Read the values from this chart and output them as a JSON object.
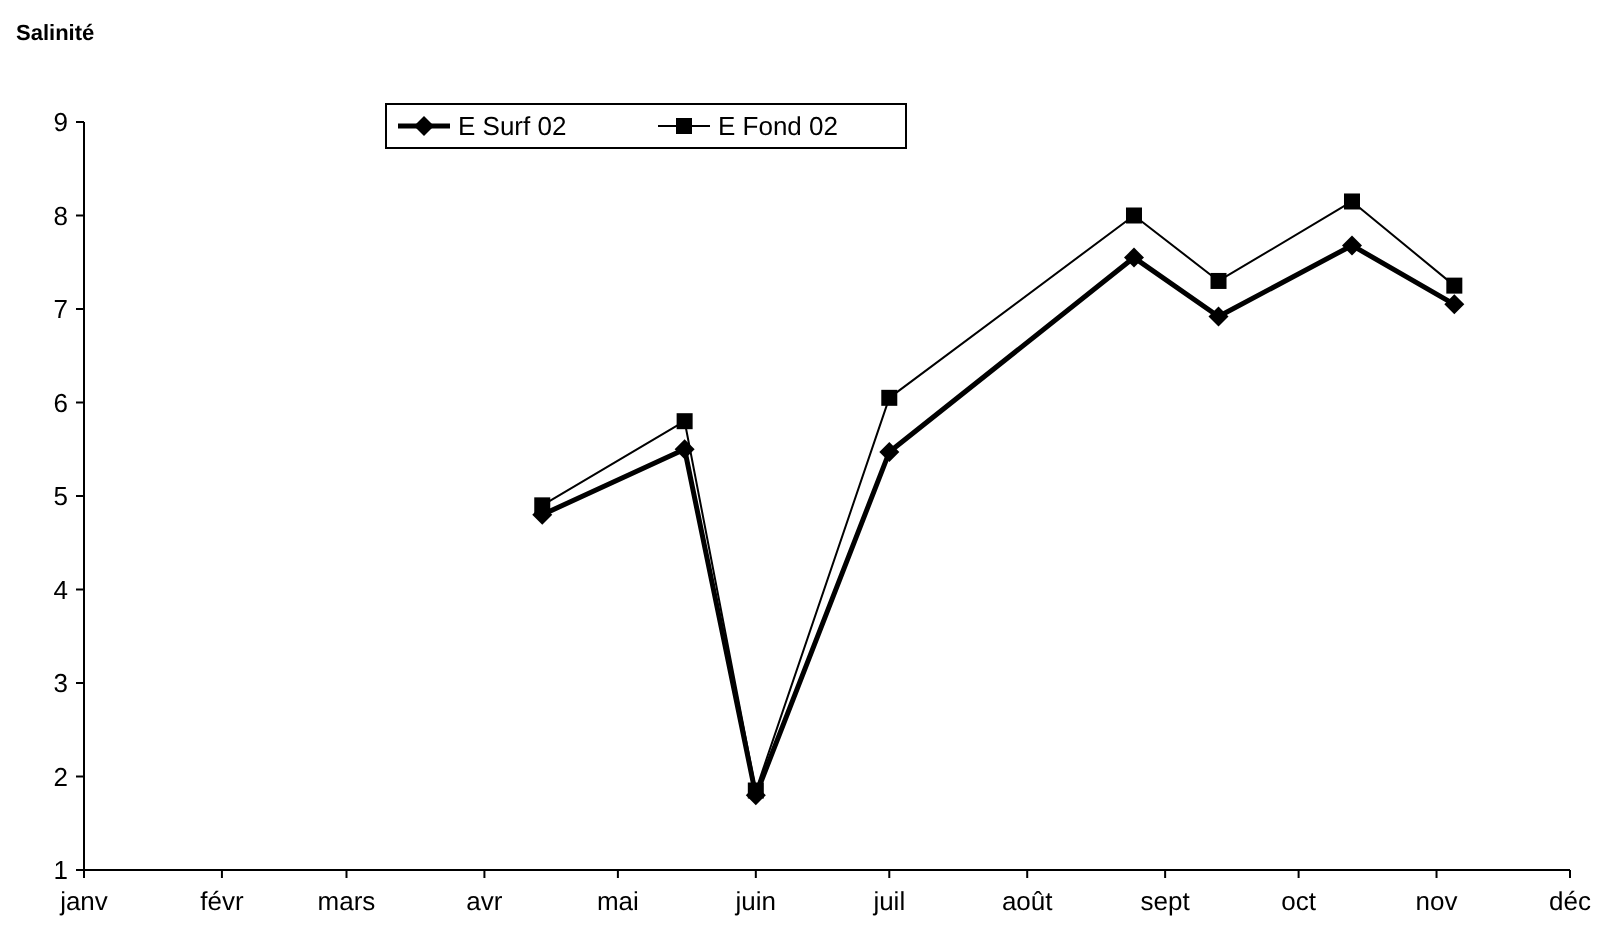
{
  "chart_data": {
    "type": "line",
    "title": "Salinité",
    "x": [
      "--04-14",
      "--05-16",
      "--06-01",
      "--07-01",
      "--08-25",
      "--09-13",
      "--10-13",
      "--11-05"
    ],
    "series": [
      {
        "name": "E Surf 02",
        "color": "#000000",
        "marker": "diamond",
        "values": [
          4.8,
          5.5,
          1.8,
          5.47,
          7.55,
          6.92,
          7.68,
          7.05
        ]
      },
      {
        "name": "E Fond 02",
        "color": "#000000",
        "marker": "square",
        "values": [
          4.9,
          5.8,
          1.85,
          6.05,
          8.0,
          7.3,
          8.15,
          7.25
        ]
      }
    ],
    "xlim": [
      "--01-01",
      "--12-01"
    ],
    "xticks": [
      {
        "value": "--01-01",
        "label": "janv"
      },
      {
        "value": "--02-01",
        "label": "févr"
      },
      {
        "value": "--03-01",
        "label": "mars"
      },
      {
        "value": "--04-01",
        "label": "avr"
      },
      {
        "value": "--05-01",
        "label": "mai"
      },
      {
        "value": "--06-01",
        "label": "juin"
      },
      {
        "value": "--07-01",
        "label": "juil"
      },
      {
        "value": "--08-01",
        "label": "août"
      },
      {
        "value": "--09-01",
        "label": "sept"
      },
      {
        "value": "--10-01",
        "label": "oct"
      },
      {
        "value": "--11-01",
        "label": "nov"
      },
      {
        "value": "--12-01",
        "label": "déc"
      }
    ],
    "ylim": [
      1,
      9
    ],
    "yticks": [
      1,
      2,
      3,
      4,
      5,
      6,
      7,
      8,
      9
    ],
    "grid": false,
    "legend": "top",
    "line_style": "solid"
  }
}
